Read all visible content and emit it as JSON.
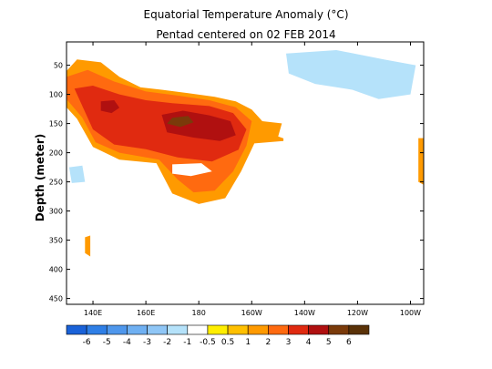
{
  "chart_data": {
    "type": "heatmap",
    "title": "Equatorial Temperature Anomaly (°C)",
    "subtitle": "Pentad centered on 02 FEB 2014",
    "ylabel": "Depth (meter)",
    "xlabel": "",
    "x_range": [
      130,
      265
    ],
    "y_range": [
      10,
      460
    ],
    "x_ticks": [
      {
        "value": 140,
        "label": "140E"
      },
      {
        "value": 160,
        "label": "160E"
      },
      {
        "value": 180,
        "label": "180"
      },
      {
        "value": 200,
        "label": "160W"
      },
      {
        "value": 220,
        "label": "140W"
      },
      {
        "value": 240,
        "label": "120W"
      },
      {
        "value": 260,
        "label": "100W"
      }
    ],
    "y_ticks": [
      50,
      100,
      150,
      200,
      250,
      300,
      350,
      400,
      450
    ],
    "colorbar": {
      "bounds": [
        -6,
        -5,
        -4,
        -3,
        -2,
        -1,
        -0.5,
        0.5,
        1,
        2,
        3,
        4,
        5,
        6
      ],
      "labels": [
        "-6",
        "-5",
        "-4",
        "-3",
        "-2",
        "-1",
        "-0.5",
        "0.5",
        "1",
        "2",
        "3",
        "4",
        "5",
        "6"
      ],
      "colors": [
        "#1a62d8",
        "#2f7fe6",
        "#4f97ec",
        "#6fb0f2",
        "#8fc6f6",
        "#b5e2fa",
        "#ffffff",
        "#ffee00",
        "#ffc000",
        "#ff9a00",
        "#ff6a10",
        "#e02a10",
        "#b01010",
        "#7a3a0a",
        "#5a3208"
      ]
    },
    "regions": [
      {
        "name": "warm-anomaly-1C",
        "value": 1,
        "points": [
          [
            130,
            60
          ],
          [
            134,
            40
          ],
          [
            143,
            45
          ],
          [
            150,
            70
          ],
          [
            158,
            88
          ],
          [
            166,
            92
          ],
          [
            176,
            98
          ],
          [
            186,
            104
          ],
          [
            194,
            112
          ],
          [
            200,
            126
          ],
          [
            204,
            146
          ],
          [
            212,
            150
          ],
          [
            212,
            180
          ],
          [
            201,
            184
          ],
          [
            196,
            232
          ],
          [
            190,
            278
          ],
          [
            180,
            288
          ],
          [
            170,
            270
          ],
          [
            164,
            218
          ],
          [
            150,
            212
          ],
          [
            140,
            190
          ],
          [
            134,
            142
          ],
          [
            130,
            122
          ]
        ]
      },
      {
        "name": "warm-anomaly-2C",
        "value": 2,
        "points": [
          [
            130,
            70
          ],
          [
            138,
            58
          ],
          [
            148,
            78
          ],
          [
            160,
            95
          ],
          [
            172,
            102
          ],
          [
            184,
            110
          ],
          [
            194,
            122
          ],
          [
            200,
            146
          ],
          [
            198,
            188
          ],
          [
            193,
            232
          ],
          [
            186,
            265
          ],
          [
            178,
            268
          ],
          [
            172,
            246
          ],
          [
            165,
            212
          ],
          [
            150,
            200
          ],
          [
            141,
            182
          ],
          [
            136,
            140
          ],
          [
            130,
            108
          ]
        ]
      },
      {
        "name": "warm-anomaly-3C",
        "value": 3,
        "points": [
          [
            133,
            90
          ],
          [
            140,
            85
          ],
          [
            150,
            100
          ],
          [
            160,
            110
          ],
          [
            170,
            115
          ],
          [
            184,
            120
          ],
          [
            193,
            132
          ],
          [
            198,
            160
          ],
          [
            195,
            195
          ],
          [
            185,
            215
          ],
          [
            172,
            208
          ],
          [
            160,
            194
          ],
          [
            148,
            186
          ],
          [
            140,
            160
          ]
        ]
      },
      {
        "name": "warm-anomaly-4C-west",
        "value": 4,
        "points": [
          [
            143,
            112
          ],
          [
            148,
            110
          ],
          [
            150,
            123
          ],
          [
            147,
            132
          ],
          [
            143,
            128
          ]
        ]
      },
      {
        "name": "warm-anomaly-4C-central",
        "value": 4,
        "points": [
          [
            166,
            135
          ],
          [
            174,
            128
          ],
          [
            184,
            136
          ],
          [
            192,
            146
          ],
          [
            194,
            170
          ],
          [
            188,
            180
          ],
          [
            178,
            174
          ],
          [
            168,
            165
          ]
        ]
      },
      {
        "name": "warm-anomaly-5C",
        "value": 5,
        "points": [
          [
            170,
            140
          ],
          [
            176,
            137
          ],
          [
            178,
            148
          ],
          [
            173,
            156
          ],
          [
            168,
            150
          ]
        ]
      },
      {
        "name": "warm-anomaly-1C-east-edge",
        "value": 1,
        "points": [
          [
            263,
            175
          ],
          [
            265,
            175
          ],
          [
            265,
            255
          ],
          [
            263,
            250
          ]
        ]
      },
      {
        "name": "warm-anomaly-1C-west-deep",
        "value": 1,
        "points": [
          [
            137,
            345
          ],
          [
            139,
            342
          ],
          [
            139,
            378
          ],
          [
            137,
            372
          ]
        ]
      },
      {
        "name": "cold-anomaly-1C-east",
        "value": -1,
        "points": [
          [
            190,
            12
          ],
          [
            265,
            12
          ],
          [
            265,
            146
          ],
          [
            258,
            130
          ],
          [
            250,
            140
          ],
          [
            240,
            128
          ],
          [
            230,
            140
          ],
          [
            222,
            152
          ],
          [
            216,
            182
          ],
          [
            210,
            172
          ],
          [
            212,
            140
          ],
          [
            208,
            118
          ],
          [
            200,
            100
          ],
          [
            194,
            80
          ],
          [
            190,
            45
          ]
        ]
      },
      {
        "name": "cold-anomaly-2C-east-a",
        "value": -2,
        "points": [
          [
            213,
            30
          ],
          [
            232,
            24
          ],
          [
            250,
            40
          ],
          [
            262,
            50
          ],
          [
            260,
            100
          ],
          [
            248,
            108
          ],
          [
            238,
            92
          ],
          [
            224,
            82
          ],
          [
            214,
            64
          ]
        ]
      },
      {
        "name": "cold-anomaly-1C-west",
        "value": -1,
        "points": [
          [
            130,
            200
          ],
          [
            137,
            205
          ],
          [
            138,
            262
          ],
          [
            134,
            290
          ],
          [
            130,
            276
          ]
        ]
      },
      {
        "name": "cold-anomaly-2C-west",
        "value": -2,
        "points": [
          [
            131,
            225
          ],
          [
            136,
            222
          ],
          [
            137,
            250
          ],
          [
            132,
            252
          ]
        ]
      },
      {
        "name": "cold-anomaly-1C-mid",
        "value": -1,
        "points": [
          [
            170,
            220
          ],
          [
            181,
            218
          ],
          [
            185,
            232
          ],
          [
            177,
            240
          ],
          [
            170,
            236
          ]
        ]
      }
    ]
  }
}
